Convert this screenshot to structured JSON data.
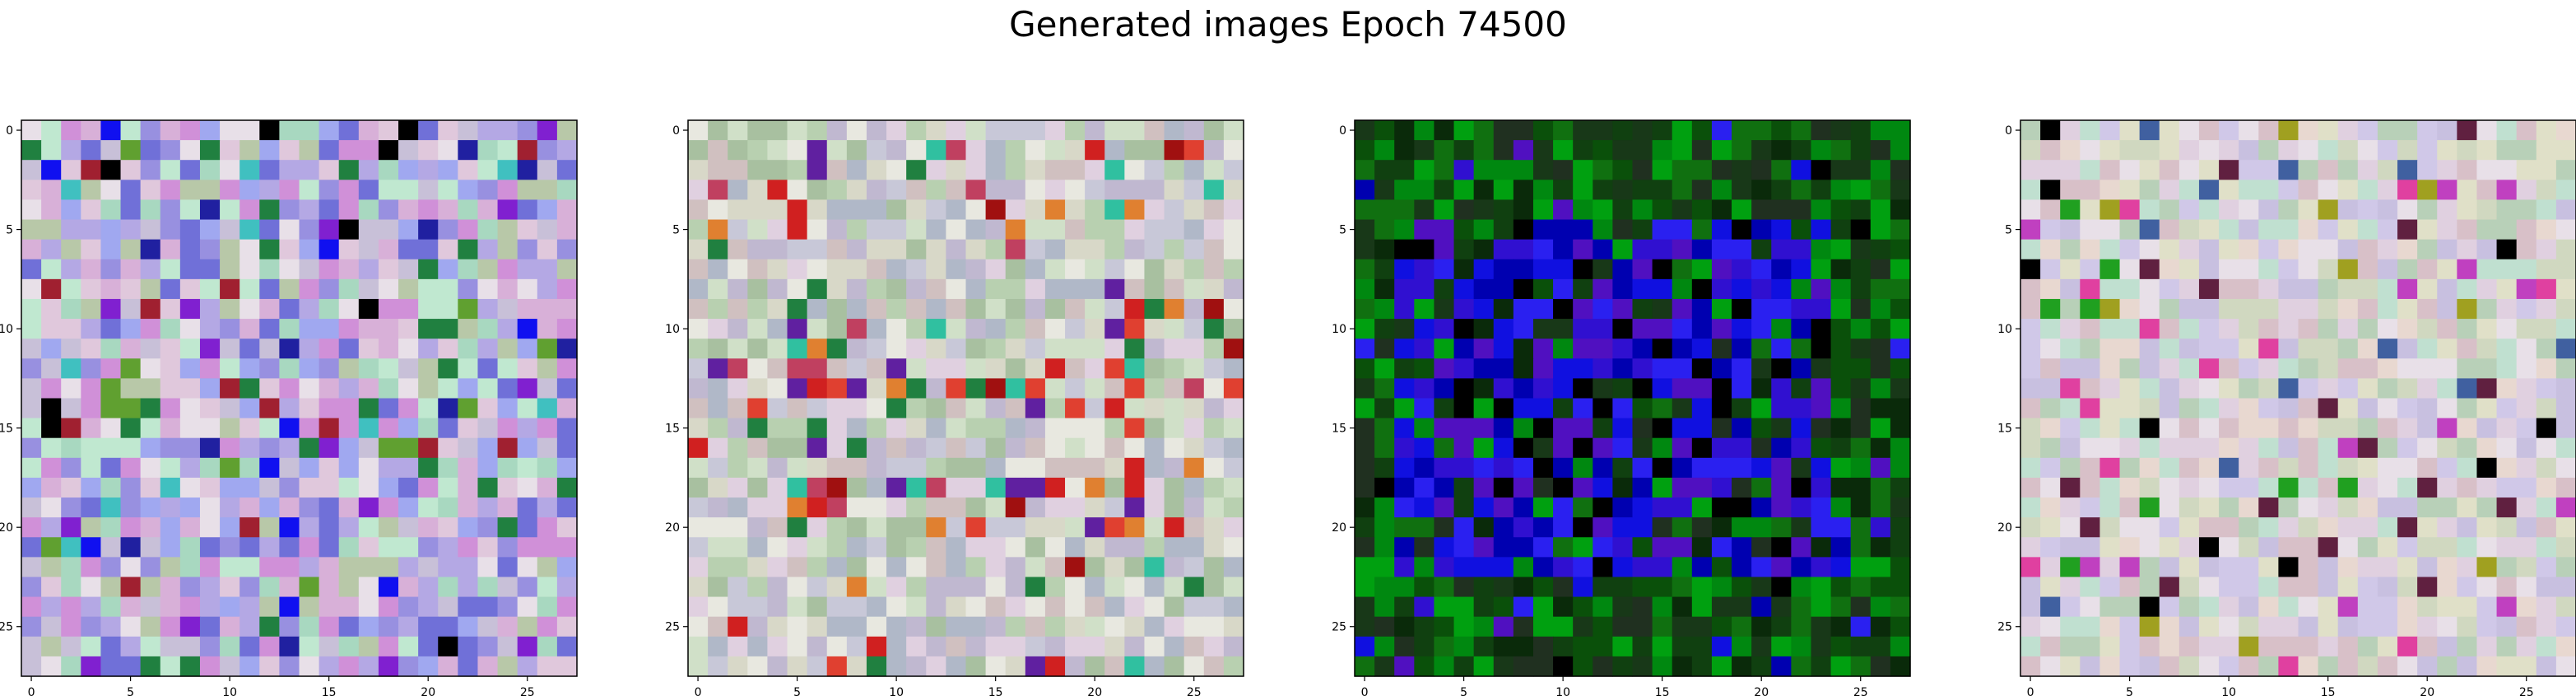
{
  "figure": {
    "title": "Generated images Epoch 74500"
  },
  "chart_data": [
    {
      "type": "heatmap",
      "grid": [
        28,
        28
      ],
      "xticks": [
        0,
        5,
        10,
        15,
        20,
        25
      ],
      "yticks": [
        0,
        5,
        10,
        15,
        20,
        25
      ],
      "xlim": [
        -0.5,
        27.5
      ],
      "ylim": [
        27.5,
        -0.5
      ],
      "palette": [
        "#c8c0d8",
        "#b4a8e4",
        "#e0c8dc",
        "#a8d8c0",
        "#d8b0d8",
        "#9890e0",
        "#c0e8d0",
        "#e8e0e8",
        "#7070d8",
        "#b8c8a8",
        "#d090d8",
        "#a0a8f0"
      ],
      "accents": [
        "#2020a0",
        "#1010f0",
        "#8020d0",
        "#000000",
        "#208040",
        "#40c0c0",
        "#a02030",
        "#60a030"
      ],
      "accent_rate": 0.14
    },
    {
      "type": "heatmap",
      "grid": [
        28,
        28
      ],
      "xticks": [
        0,
        5,
        10,
        15,
        20,
        25
      ],
      "yticks": [
        0,
        5,
        10,
        15,
        20,
        25
      ],
      "xlim": [
        -0.5,
        27.5
      ],
      "ylim": [
        27.5,
        -0.5
      ],
      "palette": [
        "#d8d8c8",
        "#c8c8d8",
        "#b8d0b0",
        "#e0d0e0",
        "#c0b8d0",
        "#d0e0c8",
        "#e8e8e0",
        "#a8c0a0",
        "#d0c0c0",
        "#b0b8c8"
      ],
      "accents": [
        "#d02020",
        "#e04030",
        "#a01010",
        "#e08030",
        "#c04060",
        "#208040",
        "#6020a0",
        "#30c0a0"
      ],
      "accent_rate": 0.1
    },
    {
      "type": "heatmap",
      "grid": [
        28,
        28
      ],
      "xticks": [
        0,
        5,
        10,
        15,
        20,
        25
      ],
      "yticks": [
        0,
        5,
        10,
        15,
        20,
        25
      ],
      "xlim": [
        -0.5,
        27.5
      ],
      "ylim": [
        27.5,
        -0.5
      ],
      "palette": [
        "#107010",
        "#008810",
        "#0a2a0a",
        "#104010",
        "#203020",
        "#00a010",
        "#183818",
        "#0a500a"
      ],
      "accents": [
        "#1010e0",
        "#3010d0",
        "#0000b0",
        "#2a20f0",
        "#000000",
        "#5010c0"
      ],
      "accent_rate": 0.55
    },
    {
      "type": "heatmap",
      "grid": [
        28,
        28
      ],
      "xticks": [
        0,
        5,
        10,
        15,
        20,
        25
      ],
      "yticks": [
        0,
        5,
        10,
        15,
        20,
        25
      ],
      "xlim": [
        -0.5,
        27.5
      ],
      "ylim": [
        27.5,
        -0.5
      ],
      "palette": [
        "#e0d0e0",
        "#d0d8c0",
        "#c8c0e0",
        "#e8e0e8",
        "#d8c0c8",
        "#c0e0d0",
        "#e0e0c8",
        "#d0c8e8",
        "#b8d0b8",
        "#e8d8d0"
      ],
      "accents": [
        "#000000",
        "#20a020",
        "#c040c0",
        "#a0a020",
        "#602040",
        "#4060a0",
        "#e040a0"
      ],
      "accent_rate": 0.12
    }
  ]
}
